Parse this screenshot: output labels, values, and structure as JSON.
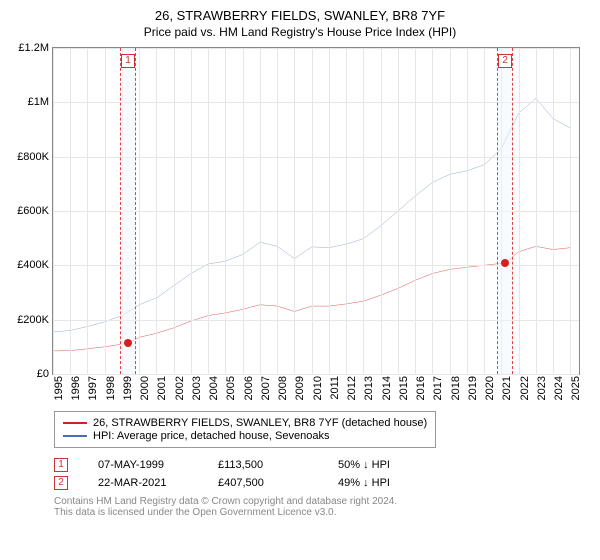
{
  "title": "26, STRAWBERRY FIELDS, SWANLEY, BR8 7YF",
  "subtitle": "Price paid vs. HM Land Registry's House Price Index (HPI)",
  "chart": {
    "type": "line",
    "ylim": [
      0,
      1200000
    ],
    "yticks": [
      0,
      200000,
      400000,
      600000,
      800000,
      1000000,
      1200000
    ],
    "ytick_labels": [
      "£0",
      "£200K",
      "£400K",
      "£600K",
      "£800K",
      "£1M",
      "£1.2M"
    ],
    "xlim": [
      1995,
      2025.5
    ],
    "xticks": [
      1995,
      1996,
      1997,
      1998,
      1999,
      2000,
      2001,
      2002,
      2003,
      2004,
      2005,
      2006,
      2007,
      2008,
      2009,
      2010,
      2011,
      2012,
      2013,
      2014,
      2015,
      2016,
      2017,
      2018,
      2019,
      2020,
      2021,
      2022,
      2023,
      2024,
      2025
    ],
    "grid_color": "#e6e6e6",
    "background": "#ffffff",
    "border_color": "#888888",
    "label_fontsize": 11,
    "markers": [
      {
        "id": "1",
        "x": 1999.35,
        "width_years": 0.9
      },
      {
        "id": "2",
        "x": 2021.22,
        "width_years": 0.9
      }
    ],
    "series": [
      {
        "name": "price_paid",
        "label": "26, STRAWBERRY FIELDS, SWANLEY, BR8 7YF (detached house)",
        "color": "#d61f1f",
        "line_width": 1.5,
        "data": [
          [
            1995,
            85000
          ],
          [
            1996,
            86000
          ],
          [
            1997,
            93000
          ],
          [
            1998,
            100000
          ],
          [
            1999,
            110000
          ],
          [
            1999.35,
            113500
          ],
          [
            2000,
            135000
          ],
          [
            2001,
            150000
          ],
          [
            2002,
            170000
          ],
          [
            2003,
            195000
          ],
          [
            2004,
            215000
          ],
          [
            2005,
            225000
          ],
          [
            2006,
            238000
          ],
          [
            2007,
            255000
          ],
          [
            2008,
            250000
          ],
          [
            2009,
            230000
          ],
          [
            2010,
            250000
          ],
          [
            2011,
            250000
          ],
          [
            2012,
            258000
          ],
          [
            2013,
            268000
          ],
          [
            2014,
            290000
          ],
          [
            2015,
            315000
          ],
          [
            2016,
            345000
          ],
          [
            2017,
            370000
          ],
          [
            2018,
            385000
          ],
          [
            2019,
            393000
          ],
          [
            2020,
            400000
          ],
          [
            2021,
            407500
          ],
          [
            2021.22,
            407500
          ],
          [
            2022,
            450000
          ],
          [
            2023,
            470000
          ],
          [
            2024,
            458000
          ],
          [
            2025,
            465000
          ]
        ]
      },
      {
        "name": "hpi",
        "label": "HPI: Average price, detached house, Sevenoaks",
        "color": "#4a6fb3",
        "line_width": 1.2,
        "data": [
          [
            1995,
            155000
          ],
          [
            1996,
            160000
          ],
          [
            1997,
            175000
          ],
          [
            1998,
            192000
          ],
          [
            1999,
            215000
          ],
          [
            2000,
            255000
          ],
          [
            2001,
            280000
          ],
          [
            2002,
            325000
          ],
          [
            2003,
            370000
          ],
          [
            2004,
            405000
          ],
          [
            2005,
            415000
          ],
          [
            2006,
            440000
          ],
          [
            2007,
            485000
          ],
          [
            2008,
            470000
          ],
          [
            2009,
            425000
          ],
          [
            2010,
            468000
          ],
          [
            2011,
            465000
          ],
          [
            2012,
            478000
          ],
          [
            2013,
            498000
          ],
          [
            2014,
            545000
          ],
          [
            2015,
            600000
          ],
          [
            2016,
            655000
          ],
          [
            2017,
            705000
          ],
          [
            2018,
            735000
          ],
          [
            2019,
            748000
          ],
          [
            2020,
            770000
          ],
          [
            2021,
            830000
          ],
          [
            2022,
            960000
          ],
          [
            2023,
            1015000
          ],
          [
            2024,
            940000
          ],
          [
            2025,
            905000
          ]
        ]
      }
    ],
    "sale_points": [
      {
        "x": 1999.35,
        "y": 113500,
        "color": "#d61f1f"
      },
      {
        "x": 2021.22,
        "y": 407500,
        "color": "#d61f1f"
      }
    ]
  },
  "legend": {
    "s1": "26, STRAWBERRY FIELDS, SWANLEY, BR8 7YF (detached house)",
    "s2": "HPI: Average price, detached house, Sevenoaks"
  },
  "transactions": [
    {
      "id": "1",
      "date": "07-MAY-1999",
      "price": "£113,500",
      "pct": "50%",
      "dir": "↓",
      "note": "HPI"
    },
    {
      "id": "2",
      "date": "22-MAR-2021",
      "price": "£407,500",
      "pct": "49%",
      "dir": "↓",
      "note": "HPI"
    }
  ],
  "footer": {
    "l1": "Contains HM Land Registry data © Crown copyright and database right 2024.",
    "l2": "This data is licensed under the Open Government Licence v3.0."
  },
  "colors": {
    "series1": "#d61f1f",
    "series2": "#4a6fb3",
    "marker_border": "#c33",
    "marker_bg": "rgba(240,245,255,.5)",
    "footer_text": "#888888"
  }
}
